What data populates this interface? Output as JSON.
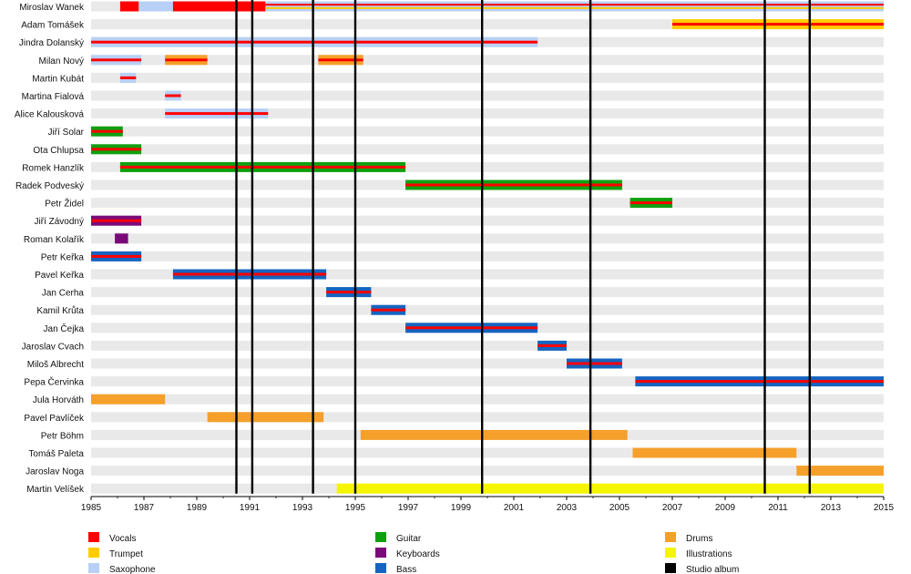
{
  "chart_data": {
    "type": "timeline",
    "xlim": [
      1985,
      2015
    ],
    "x_ticks": [
      "1985",
      "1987",
      "1989",
      "1991",
      "1993",
      "1995",
      "1997",
      "1999",
      "2001",
      "2003",
      "2005",
      "2007",
      "2009",
      "2011",
      "2013",
      "2015"
    ],
    "roles": [
      {
        "key": "vocals",
        "label": "Vocals",
        "color": "#ff0000"
      },
      {
        "key": "trumpet",
        "label": "Trumpet",
        "color": "#ffcc00"
      },
      {
        "key": "saxophone",
        "label": "Saxophone",
        "color": "#b8d0f5"
      },
      {
        "key": "guitar",
        "label": "Guitar",
        "color": "#0fa010"
      },
      {
        "key": "keyboards",
        "label": "Keyboards",
        "color": "#7a0a7a"
      },
      {
        "key": "bass",
        "label": "Bass",
        "color": "#1565c0"
      },
      {
        "key": "drums",
        "label": "Drums",
        "color": "#f5a02a"
      },
      {
        "key": "illustrations",
        "label": "Illustrations",
        "color": "#f5f500"
      },
      {
        "key": "studio_album",
        "label": "Studio album",
        "color": "#000000"
      }
    ],
    "studio_albums": [
      1990.5,
      1991.1,
      1993.4,
      1995.0,
      1999.8,
      2003.9,
      2010.5,
      2012.2
    ],
    "members": [
      {
        "name": "Miroslav Wanek",
        "bars": [
          {
            "start": 1986.1,
            "end": 1991.6,
            "role": "vocals"
          },
          {
            "start": 1991.6,
            "end": 2015.0,
            "role": "saxophone",
            "stripes": [
              "vocals",
              "trumpet"
            ]
          },
          {
            "start": 1986.8,
            "end": 1988.1,
            "role": "saxophone"
          }
        ]
      },
      {
        "name": "Adam Tomášek",
        "bars": [
          {
            "start": 2007.0,
            "end": 2015.0,
            "role": "trumpet",
            "stripes": [
              "vocals"
            ]
          }
        ]
      },
      {
        "name": "Jindra Dolanský",
        "bars": [
          {
            "start": 1985.0,
            "end": 2001.9,
            "role": "saxophone",
            "stripes": [
              "vocals"
            ]
          }
        ]
      },
      {
        "name": "Milan Nový",
        "bars": [
          {
            "start": 1985.0,
            "end": 1986.9,
            "role": "saxophone",
            "stripes": [
              "vocals"
            ]
          },
          {
            "start": 1987.8,
            "end": 1989.4,
            "role": "drums",
            "stripes": [
              "vocals"
            ]
          },
          {
            "start": 1993.6,
            "end": 1995.3,
            "role": "drums",
            "stripes": [
              "vocals"
            ]
          }
        ]
      },
      {
        "name": "Martin Kubát",
        "bars": [
          {
            "start": 1986.1,
            "end": 1986.7,
            "role": "saxophone",
            "stripes": [
              "vocals"
            ]
          }
        ]
      },
      {
        "name": "Martina Fialová",
        "bars": [
          {
            "start": 1987.8,
            "end": 1988.4,
            "role": "saxophone",
            "stripes": [
              "vocals"
            ]
          }
        ]
      },
      {
        "name": "Alice Kalousková",
        "bars": [
          {
            "start": 1987.8,
            "end": 1991.7,
            "role": "saxophone",
            "stripes": [
              "vocals"
            ]
          }
        ]
      },
      {
        "name": "Jiří Solar",
        "bars": [
          {
            "start": 1985.0,
            "end": 1986.2,
            "role": "guitar",
            "stripes": [
              "vocals"
            ]
          }
        ]
      },
      {
        "name": "Ota Chlupsa",
        "bars": [
          {
            "start": 1985.0,
            "end": 1986.9,
            "role": "guitar",
            "stripes": [
              "vocals"
            ]
          }
        ]
      },
      {
        "name": "Romek Hanzlík",
        "bars": [
          {
            "start": 1986.1,
            "end": 1996.9,
            "role": "guitar",
            "stripes": [
              "vocals"
            ]
          }
        ]
      },
      {
        "name": "Radek Podveský",
        "bars": [
          {
            "start": 1996.9,
            "end": 2005.1,
            "role": "guitar",
            "stripes": [
              "vocals"
            ]
          }
        ]
      },
      {
        "name": "Petr Židel",
        "bars": [
          {
            "start": 2005.4,
            "end": 2007.0,
            "role": "guitar",
            "stripes": [
              "vocals"
            ]
          }
        ]
      },
      {
        "name": "Jiří Závodný",
        "bars": [
          {
            "start": 1985.0,
            "end": 1986.9,
            "role": "keyboards",
            "stripes": [
              "vocals"
            ]
          }
        ]
      },
      {
        "name": "Roman Kolařík",
        "bars": [
          {
            "start": 1985.9,
            "end": 1986.4,
            "role": "keyboards"
          }
        ]
      },
      {
        "name": "Petr Keřka",
        "bars": [
          {
            "start": 1985.0,
            "end": 1986.9,
            "role": "bass",
            "stripes": [
              "vocals"
            ]
          }
        ]
      },
      {
        "name": "Pavel Keřka",
        "bars": [
          {
            "start": 1988.1,
            "end": 1993.9,
            "role": "bass",
            "stripes": [
              "vocals"
            ]
          }
        ]
      },
      {
        "name": "Jan Cerha",
        "bars": [
          {
            "start": 1993.9,
            "end": 1995.6,
            "role": "bass",
            "stripes": [
              "vocals"
            ]
          }
        ]
      },
      {
        "name": "Kamil Krůta",
        "bars": [
          {
            "start": 1995.6,
            "end": 1996.9,
            "role": "bass",
            "stripes": [
              "vocals"
            ]
          }
        ]
      },
      {
        "name": "Jan Čejka",
        "bars": [
          {
            "start": 1996.9,
            "end": 2001.9,
            "role": "bass",
            "stripes": [
              "vocals"
            ]
          }
        ]
      },
      {
        "name": "Jaroslav Cvach",
        "bars": [
          {
            "start": 2001.9,
            "end": 2003.0,
            "role": "bass",
            "stripes": [
              "vocals"
            ]
          }
        ]
      },
      {
        "name": "Miloš Albrecht",
        "bars": [
          {
            "start": 2003.0,
            "end": 2005.1,
            "role": "bass",
            "stripes": [
              "vocals"
            ]
          }
        ]
      },
      {
        "name": "Pepa Červinka",
        "bars": [
          {
            "start": 2005.6,
            "end": 2015.0,
            "role": "bass",
            "stripes": [
              "vocals"
            ]
          }
        ]
      },
      {
        "name": "Jula Horváth",
        "bars": [
          {
            "start": 1985.0,
            "end": 1987.8,
            "role": "drums"
          }
        ]
      },
      {
        "name": "Pavel Pavlíček",
        "bars": [
          {
            "start": 1989.4,
            "end": 1993.8,
            "role": "drums"
          }
        ]
      },
      {
        "name": "Petr Böhm",
        "bars": [
          {
            "start": 1995.2,
            "end": 2005.3,
            "role": "drums"
          }
        ]
      },
      {
        "name": "Tomáš Paleta",
        "bars": [
          {
            "start": 2005.5,
            "end": 2011.7,
            "role": "drums"
          }
        ]
      },
      {
        "name": "Jaroslav Noga",
        "bars": [
          {
            "start": 2011.7,
            "end": 2015.0,
            "role": "drums"
          }
        ]
      },
      {
        "name": "Martin Velíšek",
        "bars": [
          {
            "start": 1994.3,
            "end": 2015.0,
            "role": "illustrations"
          }
        ]
      }
    ]
  }
}
